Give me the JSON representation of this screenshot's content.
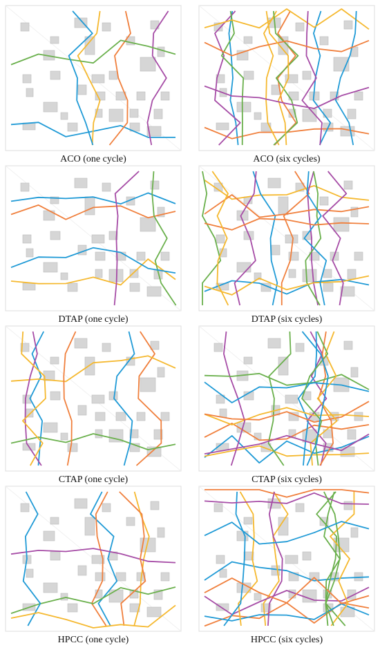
{
  "panels": [
    {
      "caption": "ACO (one cycle)"
    },
    {
      "caption": "ACO (six cycles)"
    },
    {
      "caption": "DTAP (one cycle)"
    },
    {
      "caption": "DTAP (six cycles)"
    },
    {
      "caption": "CTAP (one cycle)"
    },
    {
      "caption": "CTAP (six cycles)"
    },
    {
      "caption": "HPCC (one cycle)"
    },
    {
      "caption": "HPCC (six cycles)"
    }
  ]
}
